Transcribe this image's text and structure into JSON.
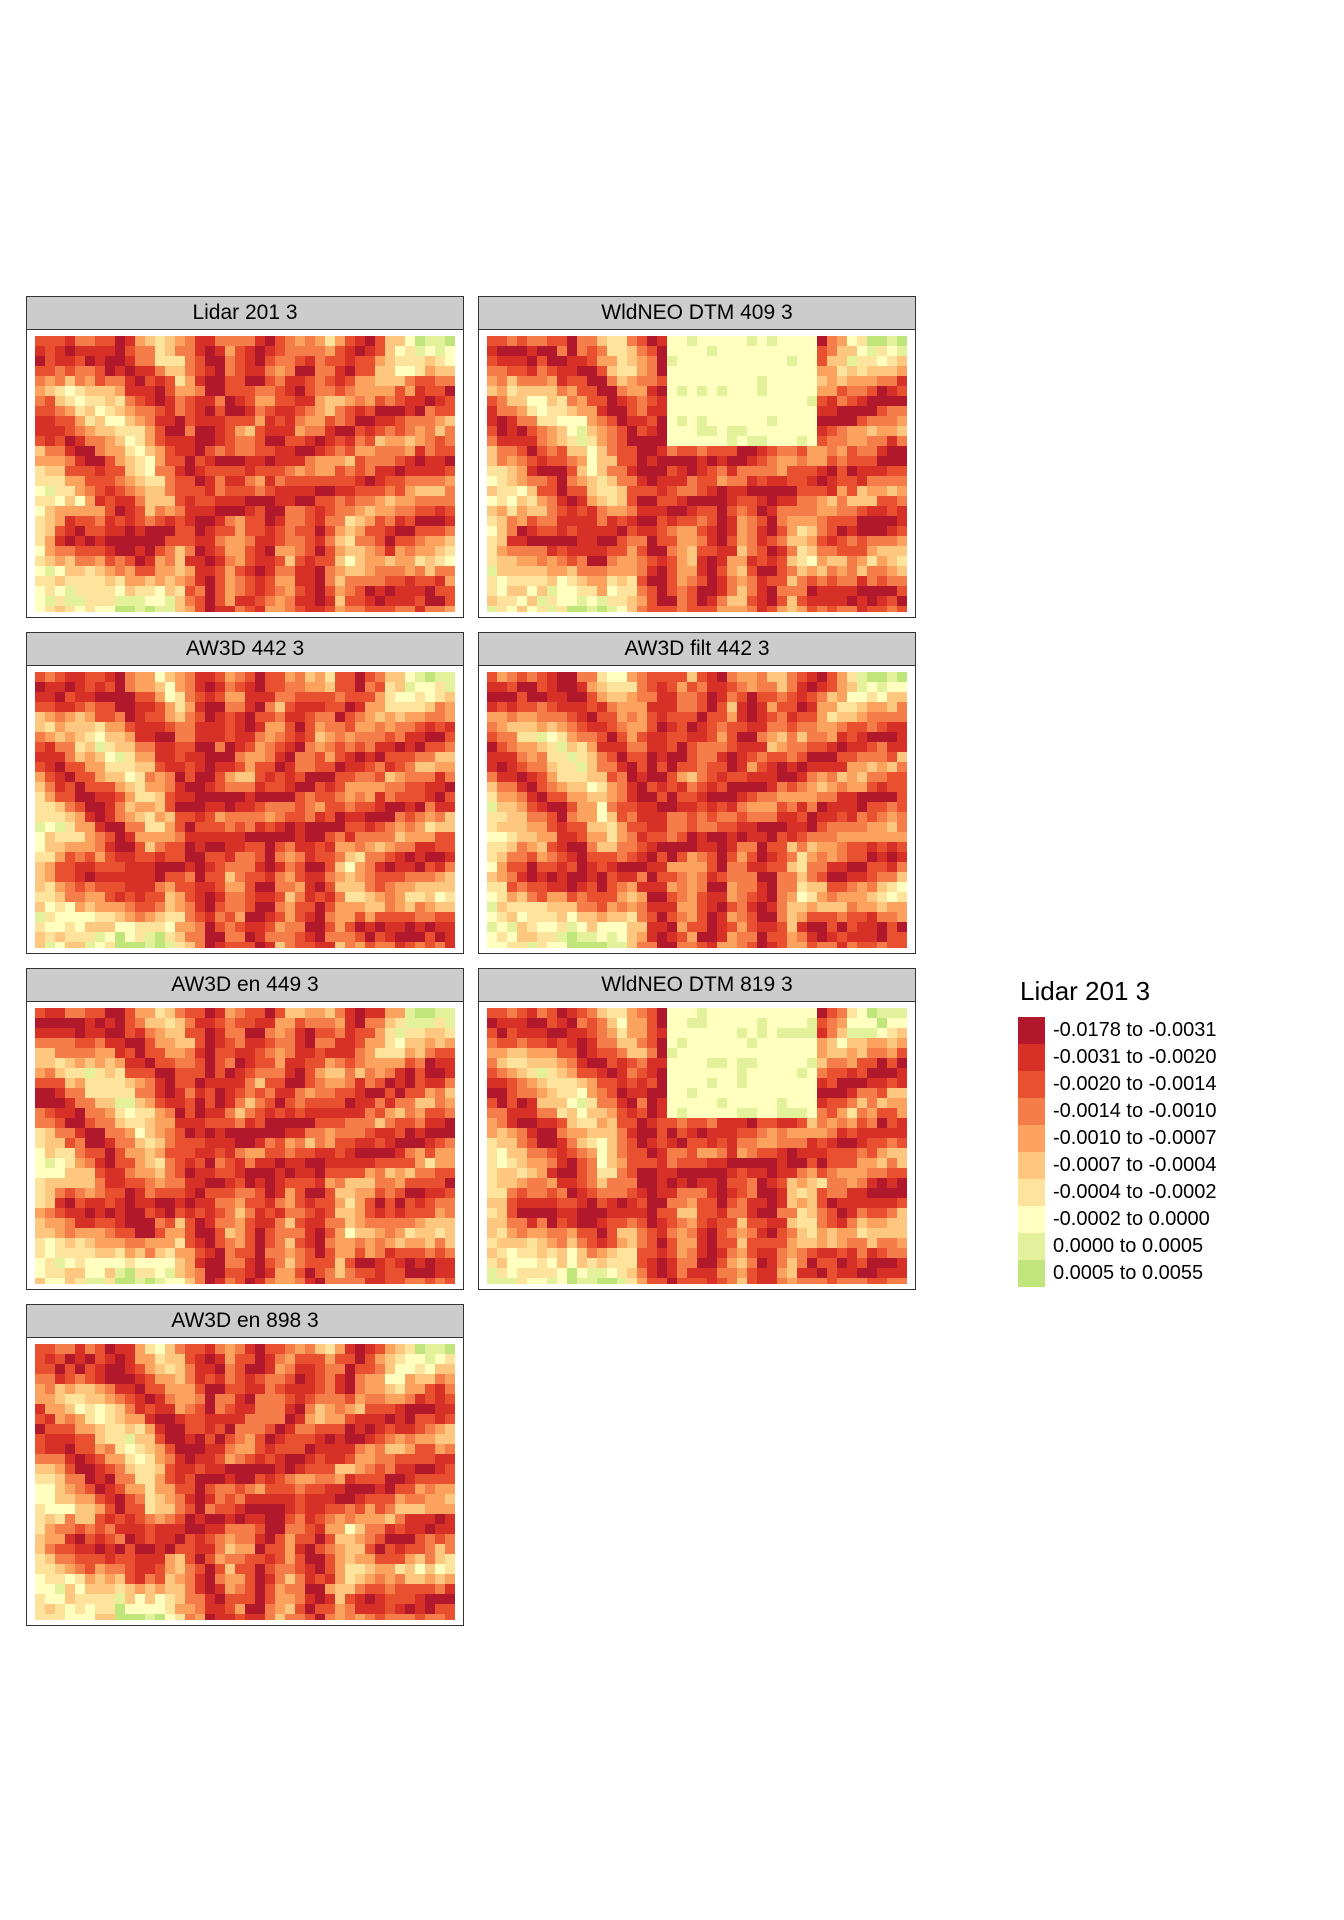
{
  "panels": [
    {
      "title": "Lidar 201 3",
      "seed": 11
    },
    {
      "title": "WldNEO DTM 409 3",
      "seed": 23
    },
    {
      "title": "AW3D 442 3",
      "seed": 37
    },
    {
      "title": "AW3D filt 442 3",
      "seed": 41
    },
    {
      "title": "AW3D en 449 3",
      "seed": 53
    },
    {
      "title": "WldNEO DTM 819 3",
      "seed": 67
    },
    {
      "title": "AW3D en 898 3",
      "seed": 79
    }
  ],
  "legend": {
    "title": "Lidar 201 3",
    "classes": [
      {
        "label": "-0.0178 to -0.0031",
        "color": "#b2182b"
      },
      {
        "label": "-0.0031 to -0.0020",
        "color": "#d73027"
      },
      {
        "label": "-0.0020 to -0.0014",
        "color": "#e9502f"
      },
      {
        "label": "-0.0014 to -0.0010",
        "color": "#f47d4a"
      },
      {
        "label": "-0.0010 to -0.0007",
        "color": "#fba35e"
      },
      {
        "label": "-0.0007 to -0.0004",
        "color": "#fdc780"
      },
      {
        "label": "-0.0004 to -0.0002",
        "color": "#fee39d"
      },
      {
        "label": "-0.0002 to 0.0000",
        "color": "#ffffbf"
      },
      {
        "label": "0.0000 to 0.0005",
        "color": "#e3f19a"
      },
      {
        "label": "0.0005 to 0.0055",
        "color": "#c0e57a"
      }
    ]
  }
}
